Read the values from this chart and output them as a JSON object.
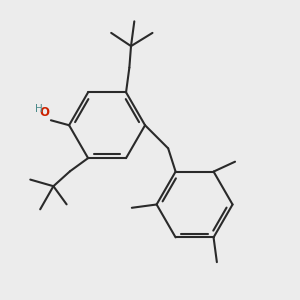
{
  "bg_color": "#ececec",
  "bond_color": "#2a2a2a",
  "oxygen_color": "#cc2200",
  "h_color": "#4a8a8a",
  "bond_width": 1.5,
  "fig_bg": "#ececec"
}
